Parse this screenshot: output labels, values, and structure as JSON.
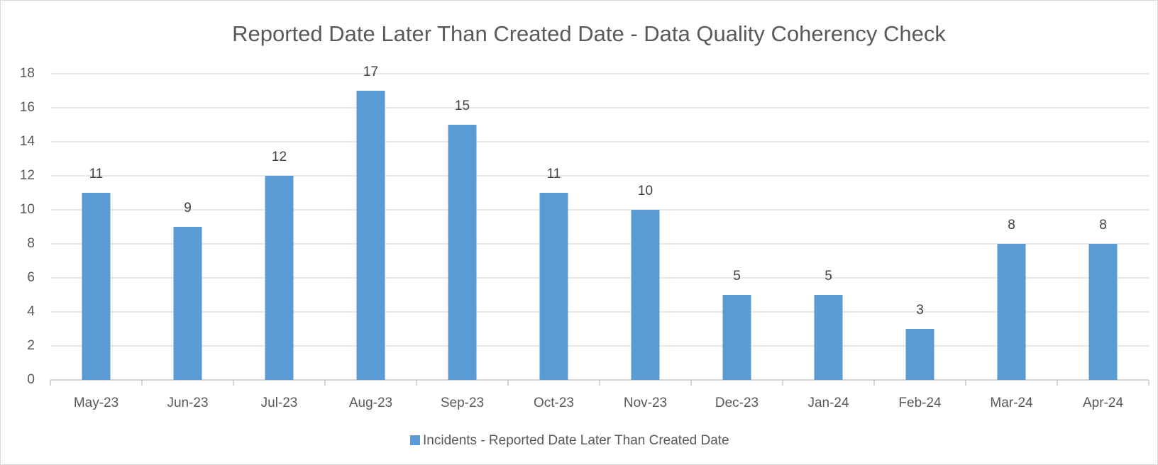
{
  "chart_data": {
    "type": "bar",
    "title": "Reported Date Later Than Created Date - Data Quality Coherency Check",
    "categories": [
      "May-23",
      "Jun-23",
      "Jul-23",
      "Aug-23",
      "Sep-23",
      "Oct-23",
      "Nov-23",
      "Dec-23",
      "Jan-24",
      "Feb-24",
      "Mar-24",
      "Apr-24"
    ],
    "series": [
      {
        "name": "Incidents - Reported Date Later Than Created Date",
        "color": "#5b9bd5",
        "values": [
          11,
          9,
          12,
          17,
          15,
          11,
          10,
          5,
          5,
          3,
          8,
          8
        ]
      }
    ],
    "ylim": [
      0,
      18
    ],
    "yticks": [
      0,
      2,
      4,
      6,
      8,
      10,
      12,
      14,
      16,
      18
    ],
    "grid": true,
    "legend": "bottom",
    "data_labels": true
  }
}
